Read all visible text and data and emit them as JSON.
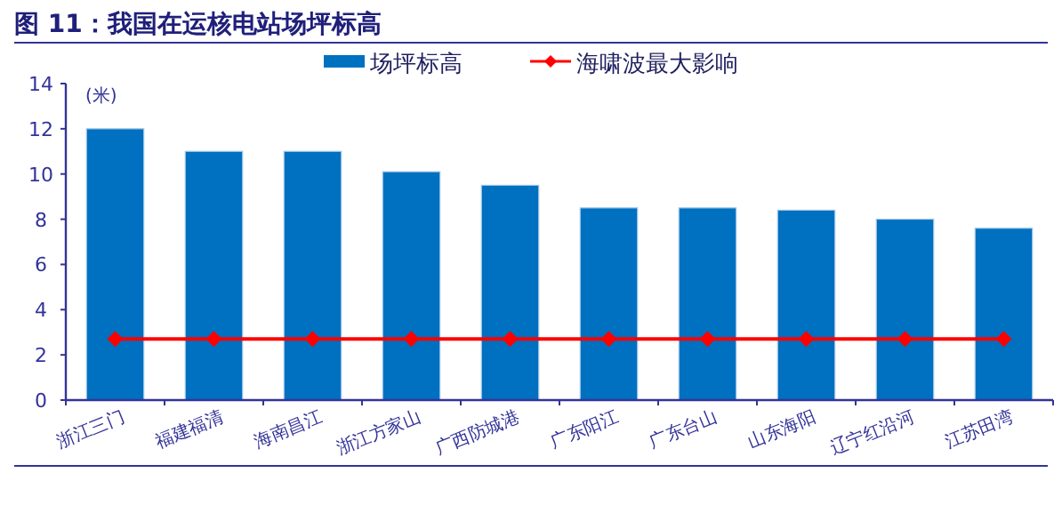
{
  "chart_data": {
    "type": "bar",
    "title": "图 11：我国在运核电站场坪标高",
    "ylabel": "(米)",
    "categories": [
      "浙江三门",
      "福建福清",
      "海南昌江",
      "浙江方家山",
      "广西防城港",
      "广东阳江",
      "广东台山",
      "山东海阳",
      "辽宁红沿河",
      "江苏田湾"
    ],
    "series": [
      {
        "name": "场坪标高",
        "color": "#0070c0",
        "values": [
          12,
          11,
          11,
          10.1,
          9.5,
          8.5,
          8.5,
          8.4,
          8.0,
          7.6
        ]
      },
      {
        "name": "海啸波最大影响",
        "type": "line",
        "color": "#ff0000",
        "marker": "diamond",
        "values": [
          2.7,
          2.7,
          2.7,
          2.7,
          2.7,
          2.7,
          2.7,
          2.7,
          2.7,
          2.7
        ]
      }
    ],
    "ylim": [
      0,
      14
    ],
    "yticks": [
      0,
      2,
      4,
      6,
      8,
      10,
      12,
      14
    ],
    "legend": "top",
    "grid": false
  }
}
